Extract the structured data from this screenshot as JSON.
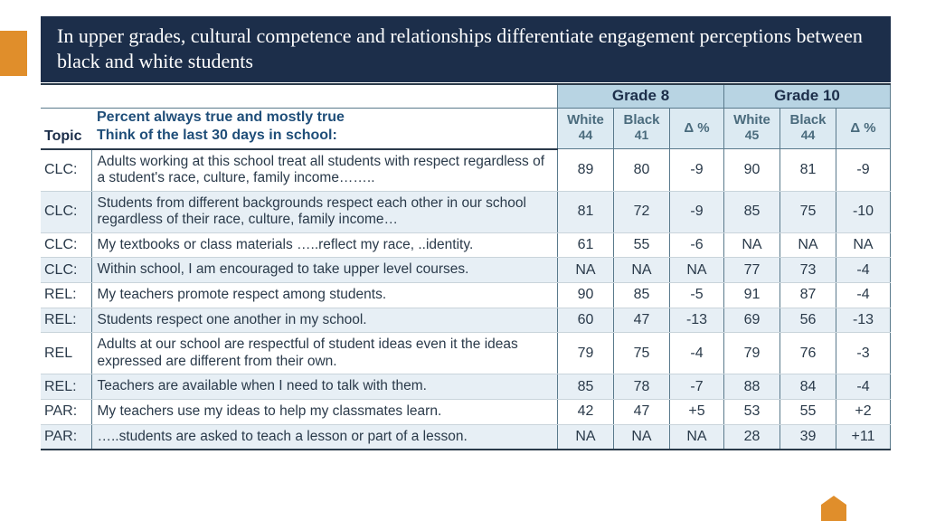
{
  "colors": {
    "title_bg": "#1c2e4a",
    "title_text": "#ffffff",
    "accent": "#e08e2b",
    "grade_head_bg": "#b8d4e3",
    "sub_head_bg": "#dceaf2",
    "alt_row_bg": "#e7eff5",
    "border": "#5a7a8c",
    "text": "#2a3a4a",
    "header_blue": "#1f4e79"
  },
  "title": "In upper grades, cultural competence and relationships differentiate engagement perceptions between black and white students",
  "table": {
    "topic_label": "Topic",
    "desc_label_line1": "Percent always true and mostly true",
    "desc_label_line2": "Think of the last 30 days in school:",
    "grades": [
      {
        "label": "Grade 8",
        "white_label": "White",
        "white_n": "44",
        "black_label": "Black",
        "black_n": "41",
        "delta_label": "Δ %"
      },
      {
        "label": "Grade 10",
        "white_label": "White",
        "white_n": "45",
        "black_label": "Black",
        "black_n": "44",
        "delta_label": "Δ %"
      }
    ],
    "rows": [
      {
        "topic": "CLC:",
        "desc": "Adults working at this school treat all students with respect regardless of a student's race, culture, family income……..",
        "g8": {
          "white": "89",
          "black": "80",
          "delta": "-9"
        },
        "g10": {
          "white": "90",
          "black": "81",
          "delta": "-9"
        }
      },
      {
        "topic": "CLC:",
        "desc": "Students from different backgrounds respect each other in our school regardless of their race, culture, family income…",
        "g8": {
          "white": "81",
          "black": "72",
          "delta": "-9"
        },
        "g10": {
          "white": "85",
          "black": "75",
          "delta": "-10"
        }
      },
      {
        "topic": "CLC:",
        "desc": "My textbooks or class materials …..reflect my race, ..identity.",
        "g8": {
          "white": "61",
          "black": "55",
          "delta": "-6"
        },
        "g10": {
          "white": "NA",
          "black": "NA",
          "delta": "NA"
        }
      },
      {
        "topic": "CLC:",
        "desc": "Within school, I am encouraged to take upper level courses.",
        "g8": {
          "white": "NA",
          "black": "NA",
          "delta": "NA"
        },
        "g10": {
          "white": "77",
          "black": "73",
          "delta": "-4"
        }
      },
      {
        "topic": "REL:",
        "desc": "My teachers promote respect among students.",
        "g8": {
          "white": "90",
          "black": "85",
          "delta": "-5"
        },
        "g10": {
          "white": "91",
          "black": "87",
          "delta": "-4"
        }
      },
      {
        "topic": "REL:",
        "desc": "Students respect one another in my school.",
        "g8": {
          "white": "60",
          "black": "47",
          "delta": "-13"
        },
        "g10": {
          "white": "69",
          "black": "56",
          "delta": "-13"
        }
      },
      {
        "topic": "REL",
        "desc": "Adults at our school are respectful of student ideas even it the ideas expressed are different from their own.",
        "g8": {
          "white": "79",
          "black": "75",
          "delta": "-4"
        },
        "g10": {
          "white": "79",
          "black": "76",
          "delta": "-3"
        }
      },
      {
        "topic": "REL:",
        "desc": "Teachers are available when I need to talk with them.",
        "g8": {
          "white": "85",
          "black": "78",
          "delta": "-7"
        },
        "g10": {
          "white": "88",
          "black": "84",
          "delta": "-4"
        }
      },
      {
        "topic": "PAR:",
        "desc": "My teachers use my ideas to help my classmates learn.",
        "g8": {
          "white": "42",
          "black": "47",
          "delta": "+5"
        },
        "g10": {
          "white": "53",
          "black": "55",
          "delta": "+2"
        }
      },
      {
        "topic": "PAR:",
        "desc": "…..students are asked to teach a lesson or part of a lesson.",
        "g8": {
          "white": "NA",
          "black": "NA",
          "delta": "NA"
        },
        "g10": {
          "white": "28",
          "black": "39",
          "delta": "+11"
        }
      }
    ]
  }
}
